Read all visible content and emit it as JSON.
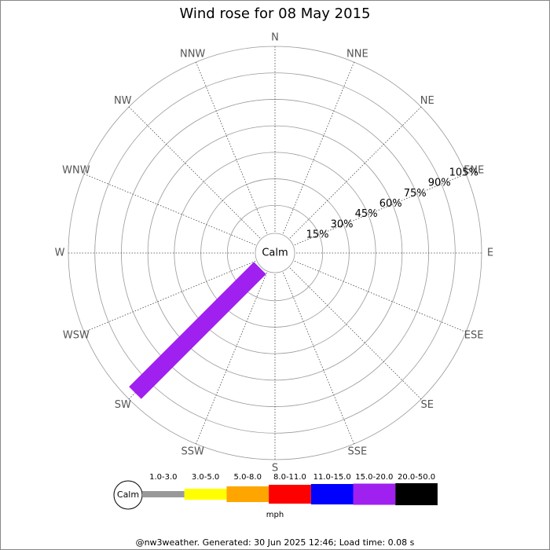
{
  "chart_data": {
    "type": "windrose",
    "title": "Wind rose for 08 May 2015",
    "directions": [
      "N",
      "NNE",
      "NE",
      "ENE",
      "E",
      "ESE",
      "SE",
      "SSE",
      "S",
      "SSW",
      "SW",
      "WSW",
      "W",
      "WNW",
      "NW",
      "NNW"
    ],
    "calm_label": "Calm",
    "rlim": [
      0,
      105
    ],
    "rticks": [
      {
        "value": 15,
        "label": "15%"
      },
      {
        "value": 30,
        "label": "30%"
      },
      {
        "value": 45,
        "label": "45%"
      },
      {
        "value": 60,
        "label": "60%"
      },
      {
        "value": 75,
        "label": "75%"
      },
      {
        "value": 90,
        "label": "90%"
      },
      {
        "value": 105,
        "label": "105%"
      }
    ],
    "series": [
      {
        "name": "1.0-3.0",
        "color": "#999999",
        "values": [
          0,
          0,
          0,
          0,
          0,
          0,
          0,
          0,
          0,
          0,
          0,
          0,
          0,
          0,
          0,
          0
        ]
      },
      {
        "name": "3.0-5.0",
        "color": "#ffff00",
        "values": [
          0,
          0,
          0,
          0,
          0,
          0,
          0,
          0,
          0,
          0,
          0,
          0,
          0,
          0,
          0,
          0
        ]
      },
      {
        "name": "5.0-8.0",
        "color": "#ffa500",
        "values": [
          0,
          0,
          0,
          0,
          0,
          0,
          0,
          0,
          0,
          0,
          0,
          0,
          0,
          0,
          0,
          0
        ]
      },
      {
        "name": "8.0-11.0",
        "color": "#ff0000",
        "values": [
          0,
          0,
          0,
          0,
          0,
          0,
          0,
          0,
          0,
          0,
          0,
          0,
          0,
          0,
          0,
          0
        ]
      },
      {
        "name": "11.0-15.0",
        "color": "#0000ff",
        "values": [
          0,
          0,
          0,
          0,
          0,
          0,
          0,
          0,
          0,
          0,
          0,
          0,
          0,
          0,
          0,
          0
        ]
      },
      {
        "name": "15.0-20.0",
        "color": "#a020f0",
        "values": [
          0,
          0,
          0,
          0,
          0,
          0,
          0,
          0,
          0,
          0,
          100,
          0,
          0,
          0,
          0,
          0
        ]
      },
      {
        "name": "20.0-50.0",
        "color": "#000000",
        "values": [
          0,
          0,
          0,
          0,
          0,
          0,
          0,
          0,
          0,
          0,
          0,
          0,
          0,
          0,
          0,
          0
        ]
      }
    ],
    "legend_unit": "mph",
    "footer": "@nw3weather. Generated: 30 Jun 2025 12:46; Load time: 0.08 s"
  }
}
